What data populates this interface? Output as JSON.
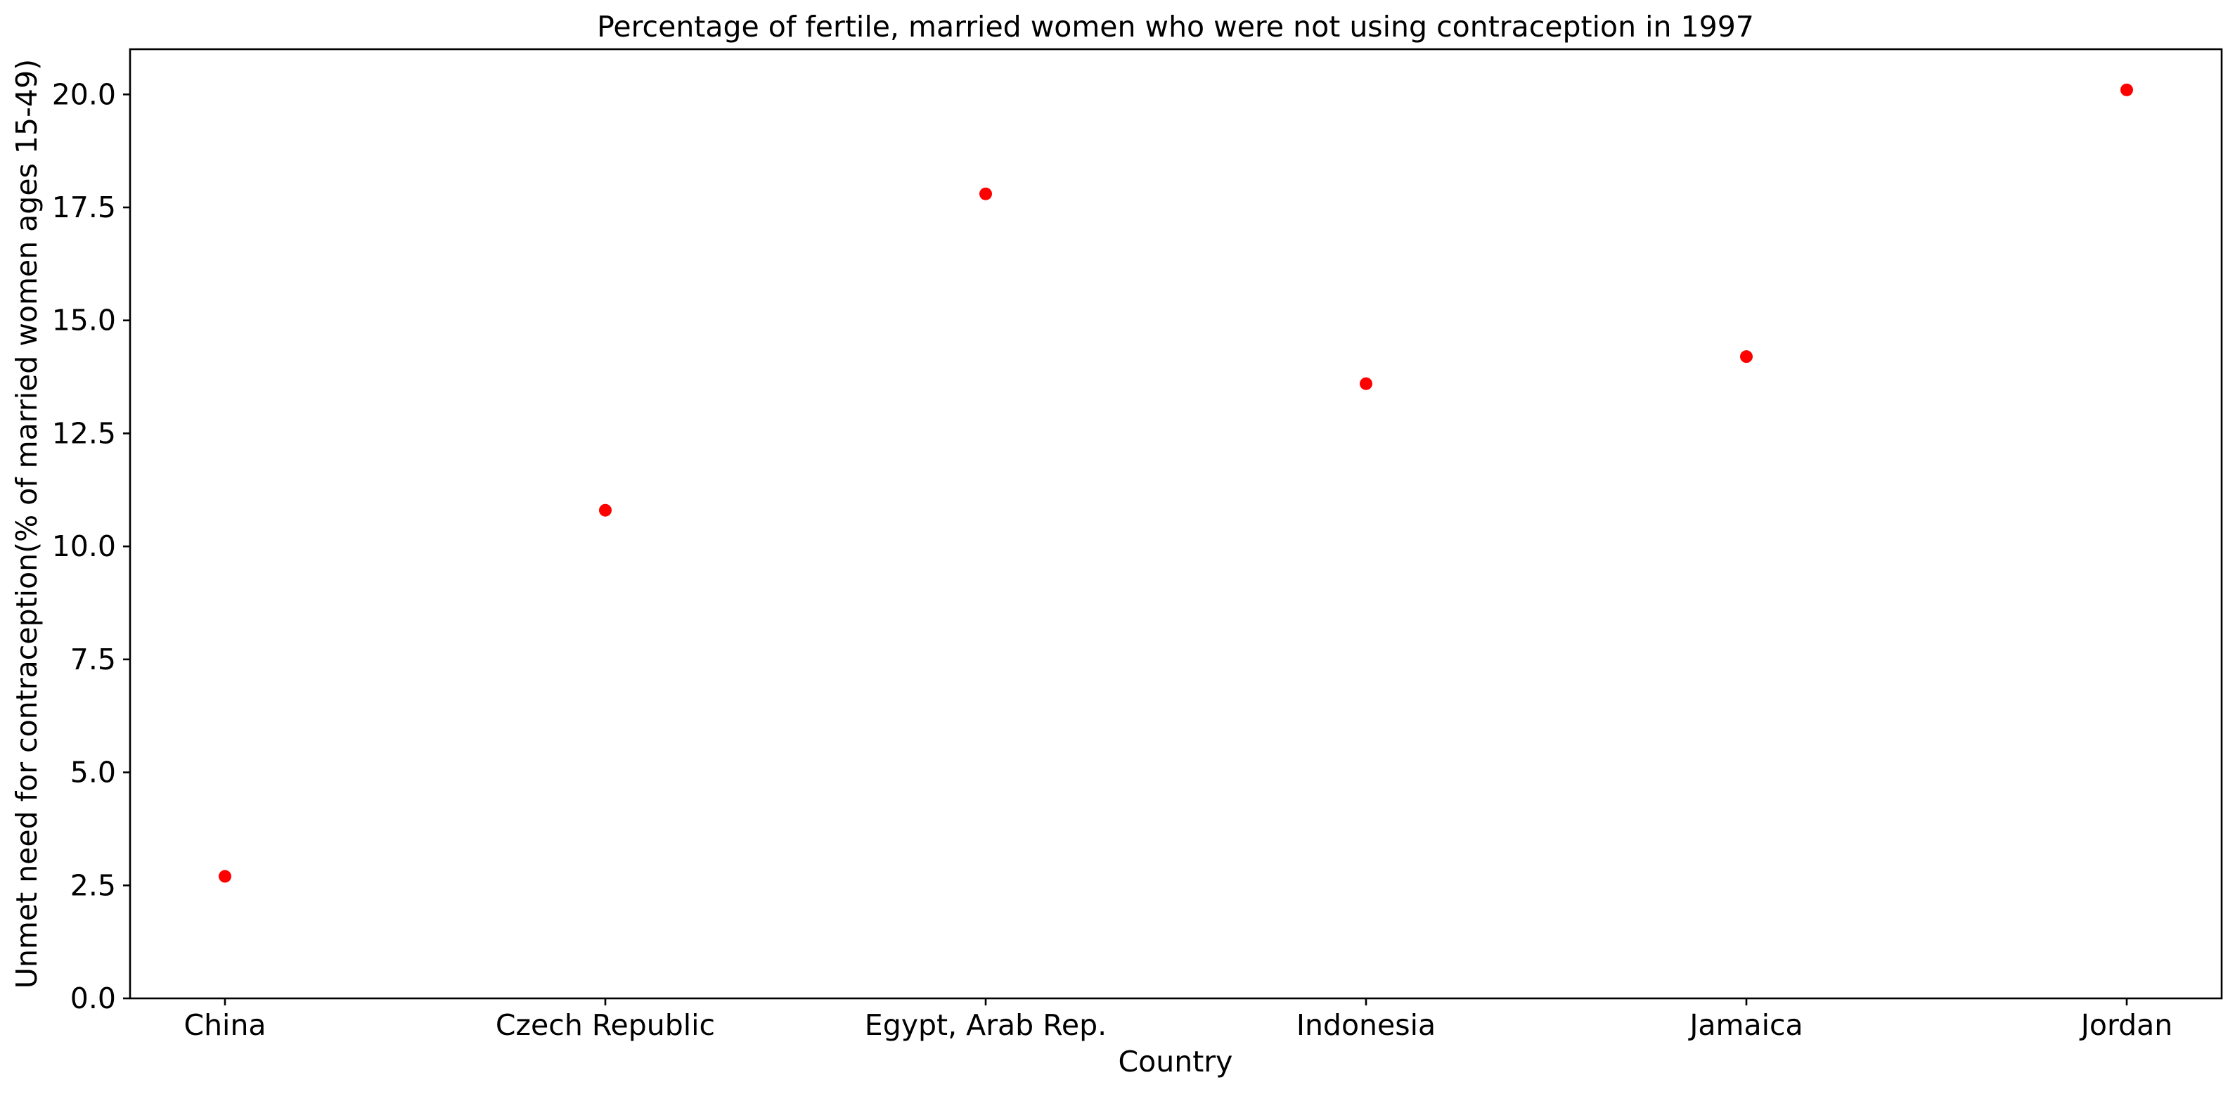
{
  "chart_data": {
    "type": "scatter",
    "title": "Percentage of fertile, married women who were not using contraception in 1997",
    "xlabel": "Country",
    "ylabel": "Unmet need for contraception(% of married women ages 15-49)",
    "categories": [
      "China",
      "Czech Republic",
      "Egypt, Arab Rep.",
      "Indonesia",
      "Jamaica",
      "Jordan"
    ],
    "values": [
      2.7,
      10.8,
      17.8,
      13.6,
      14.2,
      20.1
    ],
    "ylim": [
      0,
      21
    ],
    "yticks": [
      "0.0",
      "2.5",
      "5.0",
      "7.5",
      "10.0",
      "12.5",
      "15.0",
      "17.5",
      "20.0"
    ],
    "marker_color": "#ff0000",
    "grid": false,
    "legend": "none"
  }
}
